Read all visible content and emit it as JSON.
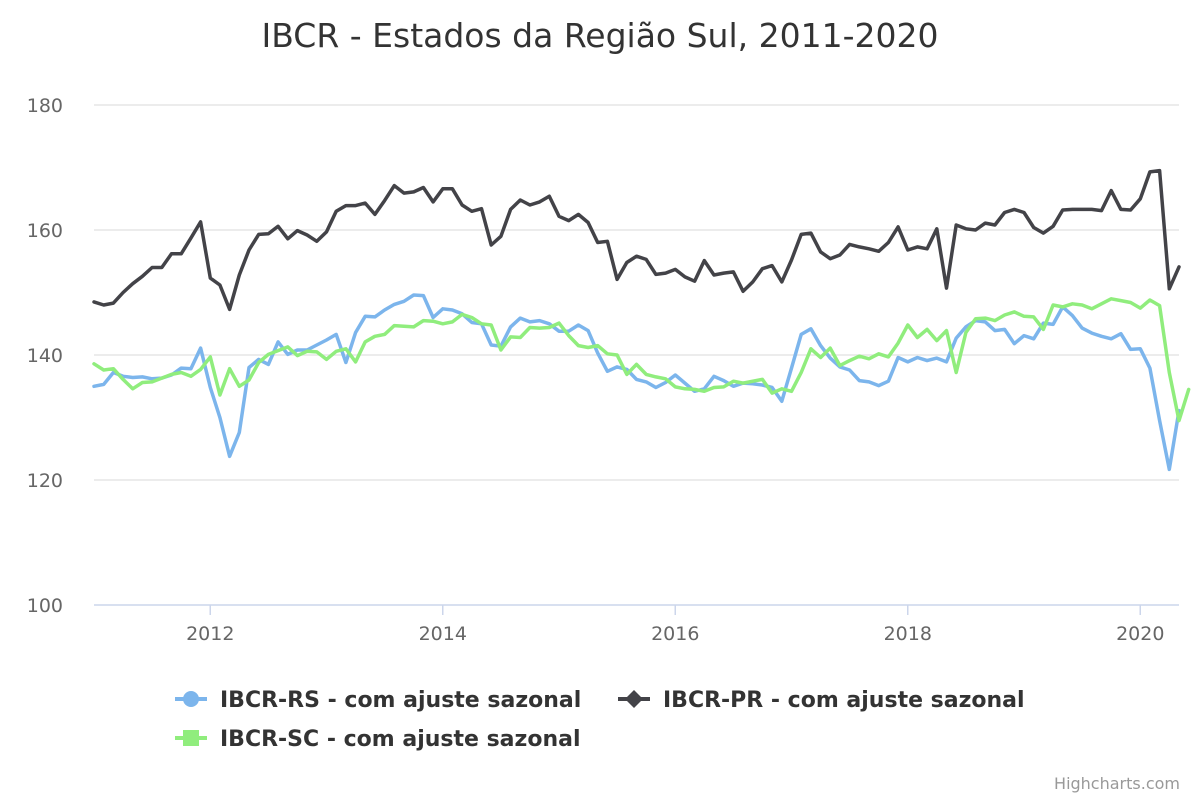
{
  "chart_data": {
    "type": "line",
    "title": "IBCR - Estados da Região Sul, 2011-2020",
    "xlabel": "",
    "ylabel": "",
    "x_start": "2011-01",
    "x_frequency": "monthly",
    "x_ticks": [
      2012,
      2014,
      2016,
      2018,
      2020
    ],
    "xlim": [
      "2011-01",
      "2020-05"
    ],
    "y_ticks": [
      100,
      120,
      140,
      160,
      180
    ],
    "ylim": [
      100,
      180
    ],
    "grid": true,
    "legend_position": "bottom-center",
    "credits": "Highcharts.com",
    "series": [
      {
        "name": "IBCR-RS - com ajuste sazonal",
        "color": "#7cb5ec",
        "marker": "circle",
        "values": [
          135.0,
          135.3,
          137.2,
          136.6,
          136.4,
          136.5,
          136.2,
          136.3,
          136.8,
          137.9,
          137.8,
          141.1,
          134.8,
          130.0,
          123.8,
          127.6,
          138.0,
          139.3,
          138.5,
          142.1,
          140.1,
          140.8,
          140.8,
          141.6,
          142.4,
          143.3,
          138.8,
          143.6,
          146.2,
          146.1,
          147.2,
          148.1,
          148.6,
          149.6,
          149.5,
          146.0,
          147.4,
          147.2,
          146.6,
          145.2,
          145.0,
          141.6,
          141.4,
          144.5,
          145.9,
          145.3,
          145.5,
          145.0,
          143.8,
          143.8,
          144.8,
          143.9,
          140.3,
          137.4,
          138.1,
          137.7,
          136.1,
          135.7,
          134.8,
          135.6,
          136.8,
          135.5,
          134.2,
          134.6,
          136.6,
          135.9,
          135.0,
          135.5,
          135.4,
          135.2,
          134.8,
          132.6,
          137.9,
          143.3,
          144.2,
          141.5,
          139.5,
          138.1,
          137.6,
          135.9,
          135.7,
          135.1,
          135.8,
          139.6,
          138.9,
          139.6,
          139.1,
          139.5,
          138.9,
          142.7,
          144.5,
          145.5,
          145.3,
          143.9,
          144.1,
          141.8,
          143.1,
          142.6,
          145.1,
          144.9,
          147.7,
          146.3,
          144.3,
          143.5,
          143.0,
          142.6,
          143.4,
          140.9,
          141.0,
          137.9,
          129.5,
          121.7,
          131.1
        ]
      },
      {
        "name": "IBCR-PR - com ajuste sazonal",
        "color": "#434348",
        "marker": "diamond",
        "values": [
          148.5,
          148.0,
          148.3,
          150.0,
          151.4,
          152.6,
          154.0,
          154.0,
          156.2,
          156.2,
          158.7,
          161.3,
          152.3,
          151.2,
          147.3,
          152.8,
          156.8,
          159.3,
          159.4,
          160.6,
          158.6,
          159.9,
          159.2,
          158.2,
          159.7,
          163.0,
          163.9,
          163.9,
          164.3,
          162.5,
          164.7,
          167.1,
          165.9,
          166.1,
          166.8,
          164.5,
          166.6,
          166.6,
          164.0,
          163.0,
          163.4,
          157.6,
          159.0,
          163.3,
          164.8,
          164.0,
          164.5,
          165.4,
          162.2,
          161.5,
          162.5,
          161.2,
          158.0,
          158.2,
          152.1,
          154.8,
          155.8,
          155.3,
          152.9,
          153.1,
          153.7,
          152.5,
          151.8,
          155.1,
          152.8,
          153.1,
          153.3,
          150.2,
          151.7,
          153.8,
          154.3,
          151.7,
          155.2,
          159.3,
          159.5,
          156.5,
          155.4,
          156.0,
          157.7,
          157.3,
          157.0,
          156.6,
          158.0,
          160.5,
          156.8,
          157.3,
          157.0,
          160.2,
          150.7,
          160.8,
          160.2,
          160.0,
          161.1,
          160.8,
          162.8,
          163.3,
          162.8,
          160.4,
          159.5,
          160.6,
          163.2,
          163.3,
          163.3,
          163.3,
          163.1,
          166.3,
          163.3,
          163.2,
          165.0,
          169.3,
          169.5,
          150.6,
          154.1
        ]
      },
      {
        "name": "IBCR-SC - com ajuste sazonal",
        "color": "#90ed7d",
        "marker": "square",
        "values": [
          138.6,
          137.6,
          137.8,
          136.1,
          134.6,
          135.6,
          135.7,
          136.3,
          136.9,
          137.2,
          136.6,
          137.7,
          139.7,
          133.6,
          137.8,
          135.0,
          136.0,
          138.8,
          140.1,
          140.7,
          141.3,
          139.9,
          140.6,
          140.5,
          139.3,
          140.6,
          141.0,
          138.9,
          142.1,
          143.0,
          143.3,
          144.7,
          144.6,
          144.5,
          145.5,
          145.4,
          145.0,
          145.3,
          146.5,
          146.0,
          145.0,
          144.8,
          140.8,
          142.9,
          142.8,
          144.4,
          144.3,
          144.4,
          145.1,
          143.1,
          141.5,
          141.2,
          141.5,
          140.2,
          140.0,
          136.9,
          138.5,
          136.9,
          136.5,
          136.2,
          134.9,
          134.6,
          134.5,
          134.2,
          134.8,
          134.9,
          135.8,
          135.5,
          135.8,
          136.1,
          133.9,
          134.6,
          134.2,
          137.2,
          141.0,
          139.6,
          141.1,
          138.3,
          139.1,
          139.8,
          139.4,
          140.2,
          139.7,
          141.9,
          144.8,
          142.8,
          144.1,
          142.3,
          143.9,
          137.2,
          143.6,
          145.8,
          145.9,
          145.5,
          146.4,
          146.9,
          146.2,
          146.1,
          144.1,
          148.0,
          147.7,
          148.2,
          148.0,
          147.4,
          148.2,
          149.0,
          148.7,
          148.4,
          147.5,
          148.8,
          147.9,
          137.2,
          129.5,
          134.5
        ]
      }
    ]
  }
}
